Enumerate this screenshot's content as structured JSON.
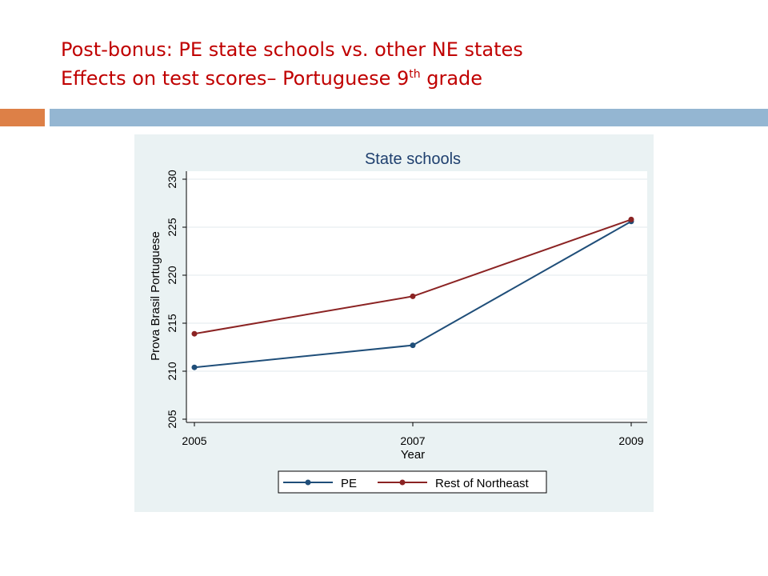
{
  "slide": {
    "title_line1": "Post-bonus: PE state schools vs. other NE states",
    "title_line2_prefix": "Effects on test scores– Portuguese 9",
    "title_line2_sup": "th",
    "title_line2_suffix": " grade"
  },
  "colors": {
    "title": "#c00000",
    "accent_bar": "#dd8047",
    "main_bar": "#94b6d2",
    "panel_bg": "#eaf2f3",
    "series_pe": "#1f4e79",
    "series_rest": "#8b2323"
  },
  "chart_data": {
    "type": "line",
    "title": "State schools",
    "xlabel": "Year",
    "ylabel": "Prova Brasil Portuguese",
    "x": [
      2005,
      2007,
      2009
    ],
    "x_ticks": [
      "2005",
      "2007",
      "2009"
    ],
    "y_ticks": [
      "205",
      "210",
      "215",
      "220",
      "225",
      "230"
    ],
    "ylim": [
      205,
      230
    ],
    "xlim": [
      2005,
      2009
    ],
    "grid": true,
    "legend_position": "bottom",
    "series": [
      {
        "name": "PE",
        "values": [
          210.4,
          212.7,
          225.6
        ],
        "color": "#1f4e79"
      },
      {
        "name": "Rest of Northeast",
        "values": [
          213.9,
          217.8,
          225.8
        ],
        "color": "#8b2323"
      }
    ]
  }
}
